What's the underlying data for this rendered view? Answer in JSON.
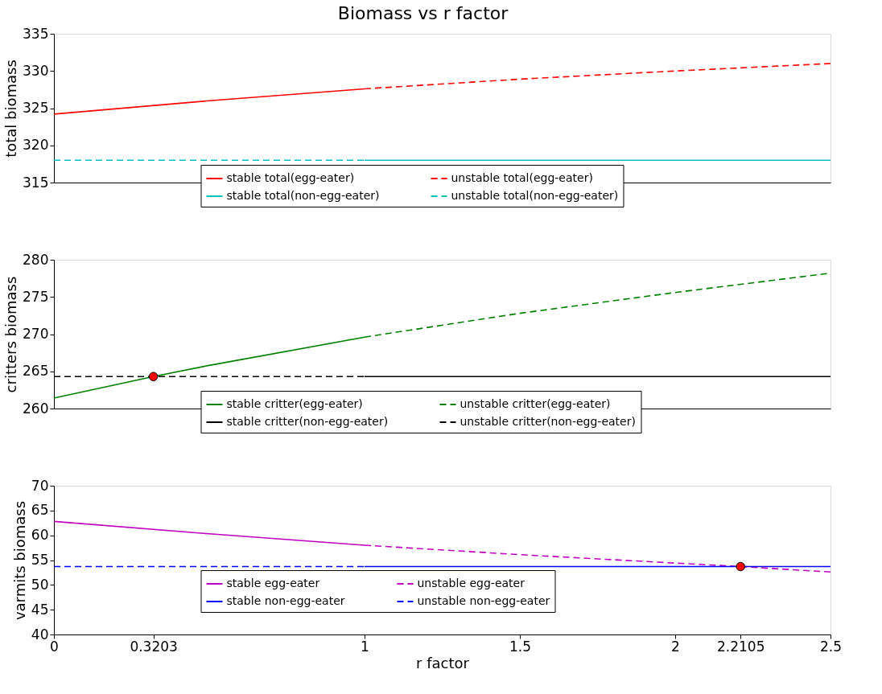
{
  "chart_data": [
    {
      "type": "line",
      "title": "Biomass vs r factor",
      "ylabel": "total biomass",
      "xlim": [
        0,
        2.5
      ],
      "ylim": [
        315,
        335
      ],
      "yticks": [
        315,
        320,
        325,
        330,
        335
      ],
      "tick_labels": "y",
      "legend": "bottom",
      "grid": false,
      "series": [
        {
          "name": "stable total(egg-eater)",
          "color": "#ff0000",
          "line_style": "solid",
          "x": [
            0,
            0.5,
            1
          ],
          "values": [
            324.2,
            326.0,
            327.6
          ]
        },
        {
          "name": "unstable total(egg-eater)",
          "color": "#ff0000",
          "line_style": "dashed",
          "x": [
            1,
            1.5,
            2,
            2.5
          ],
          "values": [
            327.6,
            328.9,
            330.0,
            331.0
          ]
        },
        {
          "name": "stable total(non-egg-eater)",
          "color": "#00bfbf",
          "line_style": "solid",
          "x": [
            1,
            2.5
          ],
          "values": [
            318,
            318
          ]
        },
        {
          "name": "unstable total(non-egg-eater)",
          "color": "#00bfbf",
          "line_style": "dashed",
          "x": [
            0,
            1
          ],
          "values": [
            318,
            318
          ]
        }
      ]
    },
    {
      "type": "line",
      "ylabel": "critters biomass",
      "xlim": [
        0,
        2.5
      ],
      "ylim": [
        260,
        280
      ],
      "yticks": [
        260,
        265,
        270,
        275,
        280
      ],
      "tick_labels": "y",
      "legend": "bottom",
      "grid": false,
      "series": [
        {
          "name": "stable critter(egg-eater)",
          "color": "#008000",
          "line_style": "solid",
          "x": [
            0,
            0.3203,
            0.5,
            1
          ],
          "values": [
            261.4,
            264.3,
            265.8,
            269.6
          ]
        },
        {
          "name": "unstable critter(egg-eater)",
          "color": "#008000",
          "line_style": "dashed",
          "x": [
            1,
            1.5,
            2,
            2.5
          ],
          "values": [
            269.6,
            272.8,
            275.6,
            278.2
          ]
        },
        {
          "name": "stable critter(non-egg-eater)",
          "color": "#000000",
          "line_style": "solid",
          "x": [
            1,
            2.5
          ],
          "values": [
            264.3,
            264.3
          ]
        },
        {
          "name": "unstable critter(non-egg-eater)",
          "color": "#000000",
          "line_style": "dashed",
          "x": [
            0,
            1
          ],
          "values": [
            264.3,
            264.3
          ]
        },
        {
          "type": "scatter",
          "color": "#ff0000",
          "marker": "circle",
          "x": [
            0.3203
          ],
          "values": [
            264.3
          ]
        }
      ]
    },
    {
      "type": "line",
      "ylabel": "varmits biomass",
      "xlabel": "r factor",
      "xlim": [
        0,
        2.5
      ],
      "xticks": [
        0,
        0.3203,
        1,
        1.5,
        2,
        2.2105,
        2.5
      ],
      "ylim": [
        40,
        70
      ],
      "yticks": [
        40,
        45,
        50,
        55,
        60,
        65,
        70
      ],
      "legend": "bottom",
      "grid": false,
      "series": [
        {
          "name": "stable egg-eater",
          "color": "#bf00bf",
          "line_style": "solid",
          "x": [
            0,
            0.5,
            1
          ],
          "values": [
            62.8,
            60.3,
            58.0
          ]
        },
        {
          "name": "unstable egg-eater",
          "color": "#bf00bf",
          "line_style": "dashed",
          "x": [
            1,
            1.5,
            2,
            2.2105,
            2.5
          ],
          "values": [
            58.0,
            56.1,
            54.4,
            53.7,
            52.6
          ]
        },
        {
          "name": "stable non-egg-eater",
          "color": "#0000ff",
          "line_style": "solid",
          "x": [
            1,
            2.5
          ],
          "values": [
            53.7,
            53.7
          ]
        },
        {
          "name": "unstable non-egg-eater",
          "color": "#0000ff",
          "line_style": "dashed",
          "x": [
            0,
            1
          ],
          "values": [
            53.7,
            53.7
          ]
        },
        {
          "type": "scatter",
          "color": "#ff0000",
          "marker": "circle",
          "x": [
            2.2105
          ],
          "values": [
            53.7
          ]
        }
      ]
    }
  ]
}
